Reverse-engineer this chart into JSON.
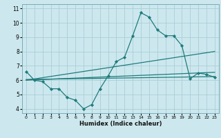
{
  "xlabel": "Humidex (Indice chaleur)",
  "background_color": "#cce8ee",
  "grid_color": "#aacdd6",
  "line_color": "#1e7b7b",
  "xlim": [
    -0.5,
    23.5
  ],
  "ylim": [
    3.7,
    11.3
  ],
  "xticks": [
    0,
    1,
    2,
    3,
    4,
    5,
    6,
    7,
    8,
    9,
    10,
    11,
    12,
    13,
    14,
    15,
    16,
    17,
    18,
    19,
    20,
    21,
    22,
    23
  ],
  "yticks": [
    4,
    5,
    6,
    7,
    8,
    9,
    10,
    11
  ],
  "series": [
    {
      "x": [
        0,
        1,
        2,
        3,
        4,
        5,
        6,
        7,
        8,
        9,
        10,
        11,
        12,
        13,
        14,
        15,
        16,
        17,
        18,
        19,
        20,
        21,
        22,
        23
      ],
      "y": [
        6.6,
        6.0,
        5.9,
        5.4,
        5.4,
        4.8,
        4.6,
        4.0,
        4.3,
        5.4,
        6.3,
        7.3,
        7.6,
        9.1,
        10.7,
        10.4,
        9.5,
        9.1,
        9.1,
        8.4,
        6.1,
        6.5,
        6.4,
        6.2
      ],
      "marker": "D",
      "markersize": 2.2,
      "linewidth": 0.9
    },
    {
      "x": [
        0,
        23
      ],
      "y": [
        6.05,
        6.25
      ],
      "marker": null,
      "markersize": 0,
      "linewidth": 0.9
    },
    {
      "x": [
        0,
        23
      ],
      "y": [
        6.0,
        6.55
      ],
      "marker": null,
      "markersize": 0,
      "linewidth": 0.9
    },
    {
      "x": [
        0,
        23
      ],
      "y": [
        6.0,
        8.0
      ],
      "marker": null,
      "markersize": 0,
      "linewidth": 0.9
    }
  ]
}
